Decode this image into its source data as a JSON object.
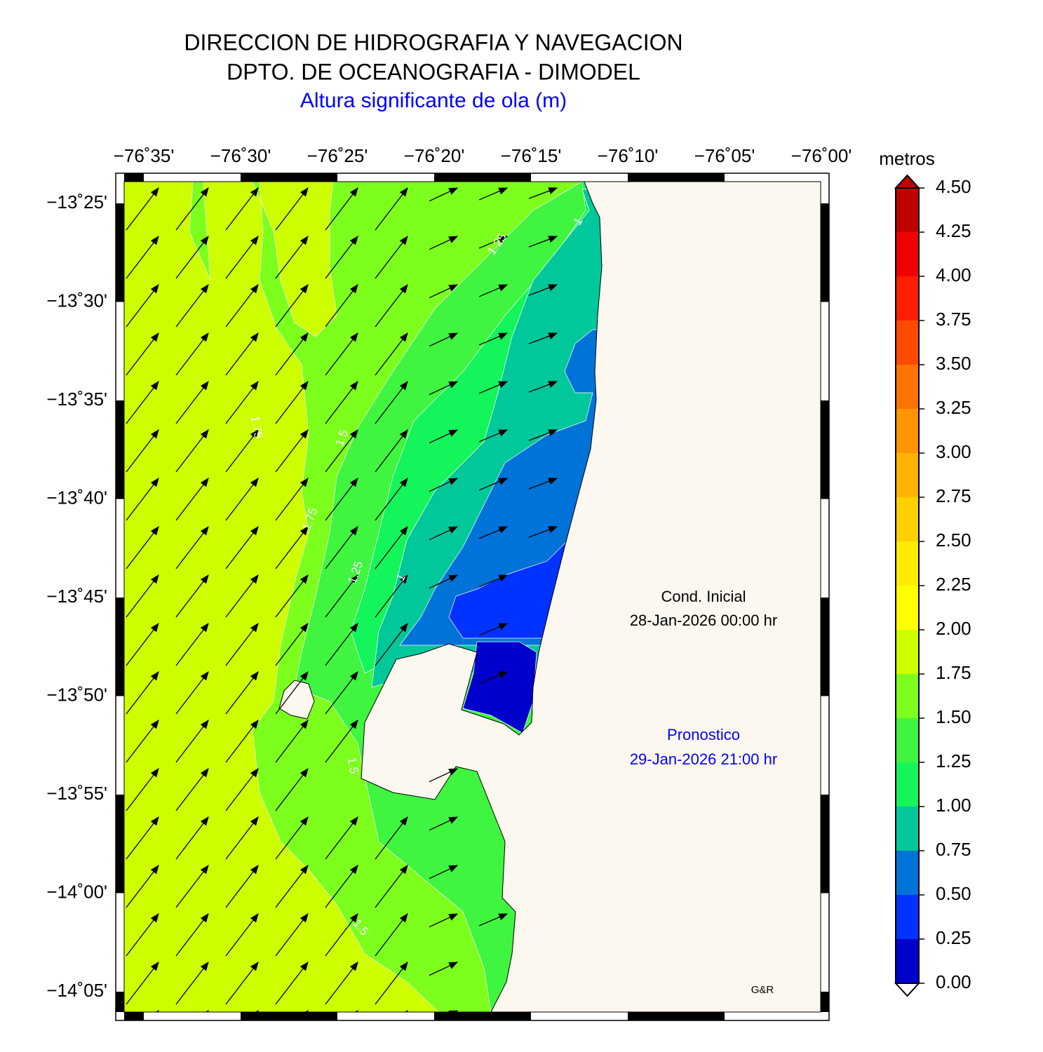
{
  "header": {
    "title": [
      "DIRECCION DE HIDROGRAFIA Y NAVEGACION",
      "DPTO. DE OCEANOGRAFIA - DIMODEL"
    ],
    "subtitle": "Altura significante de ola (m)"
  },
  "map": {
    "x_labels": [
      "−76˚35'",
      "−76˚30'",
      "−76˚25'",
      "−76˚20'",
      "−76˚15'",
      "−76˚10'",
      "−76˚05'",
      "−76˚00'"
    ],
    "y_labels": [
      "−13˚25'",
      "−13˚30'",
      "−13˚35'",
      "−13˚40'",
      "−13˚45'",
      "−13˚50'",
      "−13˚55'",
      "−14˚00'",
      "−14˚05'"
    ],
    "contour_labels": [
      "1",
      "1.25",
      "1.75",
      "1.5",
      "1.75",
      "1.25",
      "1",
      "1.5",
      "1.5"
    ],
    "initial": {
      "label": "Cond. Inicial",
      "date": "28-Jan-2026 00:00 hr"
    },
    "forecast": {
      "label": "Pronostico",
      "date": "29-Jan-2026 21:00 hr"
    },
    "credit": "G&R"
  },
  "colorbar": {
    "title": "metros",
    "range": [
      0,
      4.5
    ],
    "colors": [
      "#0000cc",
      "#0033ff",
      "#0073d9",
      "#00c89a",
      "#13f55a",
      "#3ff53f",
      "#7dff1d",
      "#cdff00",
      "#ffff00",
      "#ffea00",
      "#ffd000",
      "#ffb300",
      "#ff9500",
      "#ff7300",
      "#ff4a00",
      "#ff1e00",
      "#ee0000",
      "#c00000"
    ],
    "ticks": [
      {
        "value": 0,
        "label": "0.00"
      },
      {
        "value": 0.25,
        "label": "0.25"
      },
      {
        "value": 0.5,
        "label": "0.50"
      },
      {
        "value": 0.75,
        "label": "0.75"
      },
      {
        "value": 1,
        "label": "1.00"
      },
      {
        "value": 1.25,
        "label": "1.25"
      },
      {
        "value": 1.5,
        "label": "1.50"
      },
      {
        "value": 1.75,
        "label": "1.75"
      },
      {
        "value": 2,
        "label": "2.00"
      },
      {
        "value": 2.25,
        "label": "2.25"
      },
      {
        "value": 2.5,
        "label": "2.50"
      },
      {
        "value": 2.75,
        "label": "2.75"
      },
      {
        "value": 3,
        "label": "3.00"
      },
      {
        "value": 3.25,
        "label": "3.25"
      },
      {
        "value": 3.5,
        "label": "3.50"
      },
      {
        "value": 3.75,
        "label": "3.75"
      },
      {
        "value": 4,
        "label": "4.00"
      },
      {
        "value": 4.25,
        "label": "4.25"
      },
      {
        "value": 4.5,
        "label": "4.50"
      }
    ]
  }
}
